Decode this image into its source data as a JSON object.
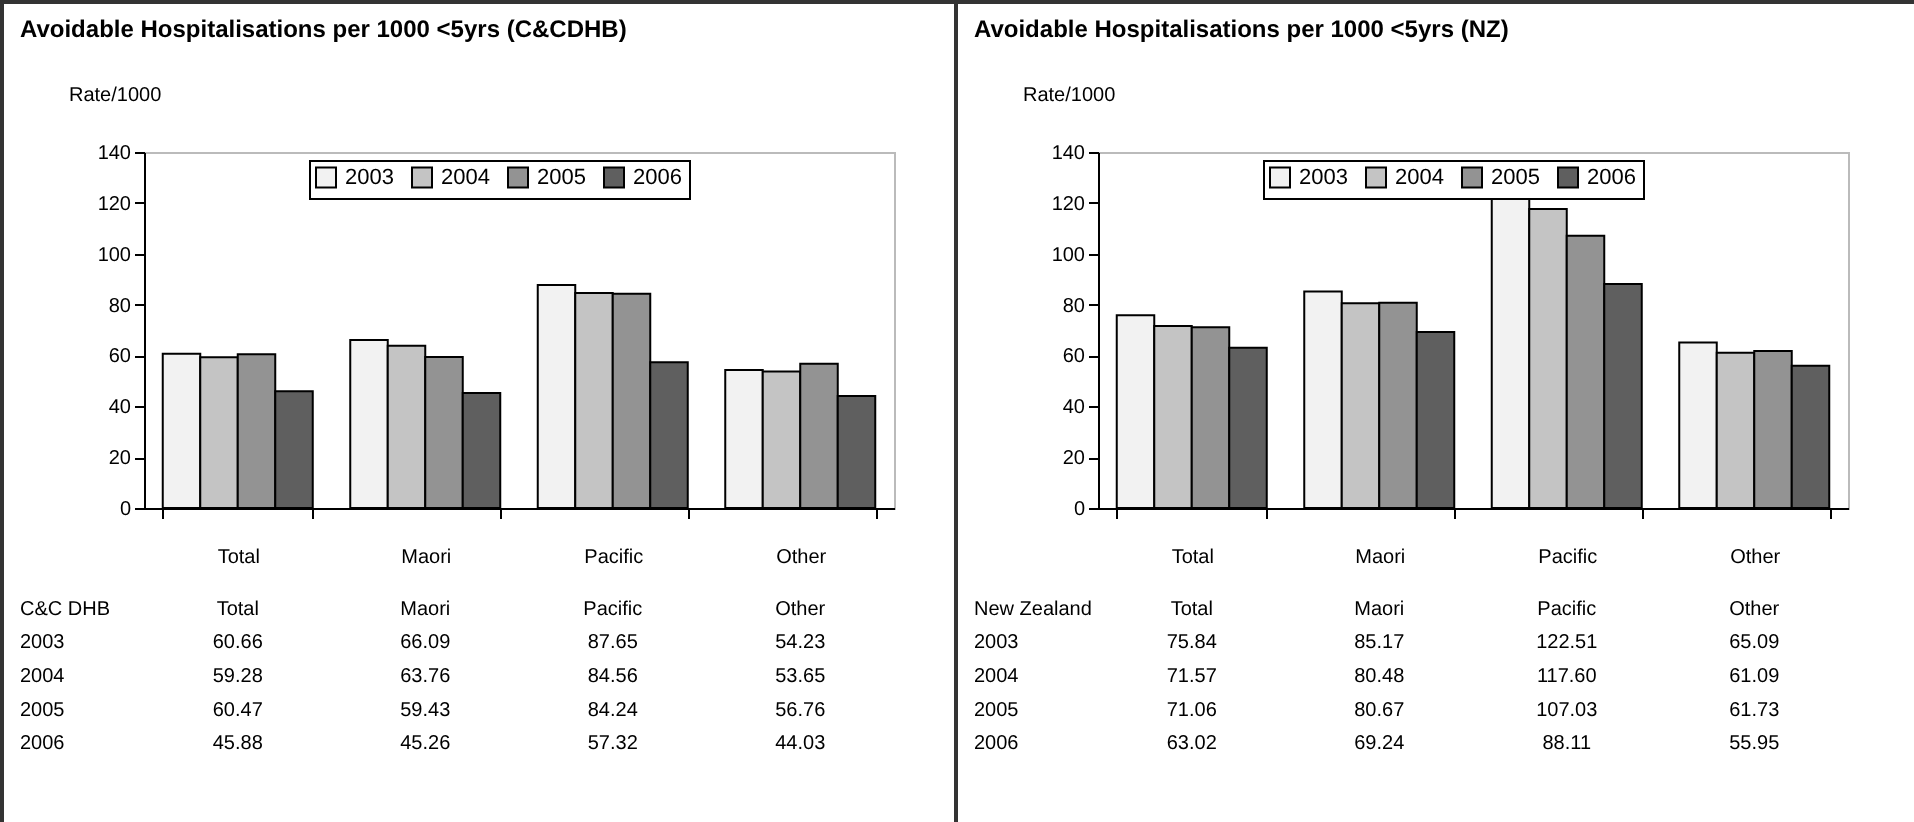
{
  "chart_data": [
    {
      "type": "bar",
      "title": "Avoidable Hospitalisations per 1000 <5yrs (C&CDHB)",
      "ylabel": "Rate/1000",
      "categories": [
        "Total",
        "Maori",
        "Pacific",
        "Other"
      ],
      "series": [
        {
          "name": "2003",
          "color": "#f2f2f2",
          "values": [
            60.66,
            66.09,
            87.65,
            54.23
          ],
          "value_labels": [
            "60.66",
            "66.09",
            "87.65",
            "54.23"
          ]
        },
        {
          "name": "2004",
          "color": "#c4c4c4",
          "values": [
            59.28,
            63.76,
            84.56,
            53.65
          ],
          "value_labels": [
            "59.28",
            "63.76",
            "84.56",
            "53.65"
          ]
        },
        {
          "name": "2005",
          "color": "#939393",
          "values": [
            60.47,
            59.43,
            84.24,
            56.76
          ],
          "value_labels": [
            "60.47",
            "59.43",
            "84.24",
            "56.76"
          ]
        },
        {
          "name": "2006",
          "color": "#5f5f5f",
          "values": [
            45.88,
            45.26,
            57.32,
            44.03
          ],
          "value_labels": [
            "45.88",
            "45.26",
            "57.32",
            "44.03"
          ]
        }
      ],
      "ylim": [
        0,
        140
      ],
      "yticks": [
        0,
        20,
        40,
        60,
        80,
        100,
        120,
        140
      ],
      "legend": "top",
      "annotations": [
        "C&C DHB"
      ]
    },
    {
      "type": "bar",
      "title": "Avoidable Hospitalisations per 1000 <5yrs (NZ)",
      "ylabel": "Rate/1000",
      "categories": [
        "Total",
        "Maori",
        "Pacific",
        "Other"
      ],
      "series": [
        {
          "name": "2003",
          "color": "#f2f2f2",
          "values": [
            75.84,
            85.17,
            122.51,
            65.09
          ],
          "value_labels": [
            "75.84",
            "85.17",
            "122.51",
            "65.09"
          ]
        },
        {
          "name": "2004",
          "color": "#c4c4c4",
          "values": [
            71.57,
            80.48,
            117.6,
            61.09
          ],
          "value_labels": [
            "71.57",
            "80.48",
            "117.60",
            "61.09"
          ]
        },
        {
          "name": "2005",
          "color": "#939393",
          "values": [
            71.06,
            80.67,
            107.03,
            61.73
          ],
          "value_labels": [
            "71.06",
            "80.67",
            "107.03",
            "61.73"
          ]
        },
        {
          "name": "2006",
          "color": "#5f5f5f",
          "values": [
            63.02,
            69.24,
            88.11,
            55.95
          ],
          "value_labels": [
            "63.02",
            "69.24",
            "88.11",
            "55.95"
          ]
        }
      ],
      "ylim": [
        0,
        140
      ],
      "yticks": [
        0,
        20,
        40,
        60,
        80,
        100,
        120,
        140
      ],
      "legend": "top",
      "annotations": [
        "New Zealand"
      ]
    }
  ]
}
